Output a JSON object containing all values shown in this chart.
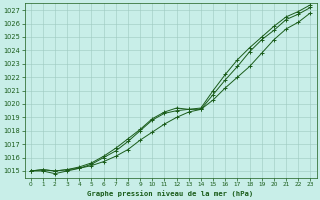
{
  "title": "Graphe pression niveau de la mer (hPa)",
  "bg_color": "#c8eee8",
  "line_color": "#1a5c1a",
  "xlim": [
    -0.5,
    23.5
  ],
  "ylim": [
    1014.5,
    1027.5
  ],
  "xticks": [
    0,
    1,
    2,
    3,
    4,
    5,
    6,
    7,
    8,
    9,
    10,
    11,
    12,
    13,
    14,
    15,
    16,
    17,
    18,
    19,
    20,
    21,
    22,
    23
  ],
  "yticks": [
    1015,
    1016,
    1017,
    1018,
    1019,
    1020,
    1021,
    1022,
    1023,
    1024,
    1025,
    1026,
    1027
  ],
  "series1_x": [
    0,
    1,
    2,
    3,
    4,
    5,
    6,
    7,
    8,
    9,
    10,
    11,
    12,
    13,
    14,
    15,
    16,
    17,
    18,
    19,
    20,
    21,
    22,
    23
  ],
  "series1_y": [
    1015.0,
    1015.1,
    1015.0,
    1015.1,
    1015.2,
    1015.4,
    1015.7,
    1016.1,
    1016.6,
    1017.3,
    1017.9,
    1018.5,
    1019.0,
    1019.4,
    1019.6,
    1020.3,
    1021.2,
    1022.0,
    1022.8,
    1023.8,
    1024.8,
    1025.6,
    1026.1,
    1026.8
  ],
  "series2_x": [
    0,
    1,
    2,
    3,
    4,
    5,
    6,
    7,
    8,
    9,
    10,
    11,
    12,
    13,
    14,
    15,
    16,
    17,
    18,
    19,
    20,
    21,
    22,
    23
  ],
  "series2_y": [
    1015.0,
    1015.0,
    1014.8,
    1015.0,
    1015.2,
    1015.5,
    1016.0,
    1016.5,
    1017.2,
    1018.0,
    1018.8,
    1019.3,
    1019.5,
    1019.6,
    1019.6,
    1020.7,
    1021.8,
    1022.8,
    1023.9,
    1024.8,
    1025.5,
    1026.3,
    1026.7,
    1027.2
  ],
  "series3_x": [
    0,
    1,
    2,
    3,
    4,
    5,
    6,
    7,
    8,
    9,
    10,
    11,
    12,
    13,
    14,
    15,
    16,
    17,
    18,
    19,
    20,
    21,
    22,
    23
  ],
  "series3_y": [
    1015.0,
    1015.1,
    1015.0,
    1015.1,
    1015.3,
    1015.6,
    1016.1,
    1016.7,
    1017.4,
    1018.1,
    1018.9,
    1019.4,
    1019.7,
    1019.6,
    1019.7,
    1021.0,
    1022.2,
    1023.3,
    1024.2,
    1025.0,
    1025.8,
    1026.5,
    1026.9,
    1027.4
  ]
}
